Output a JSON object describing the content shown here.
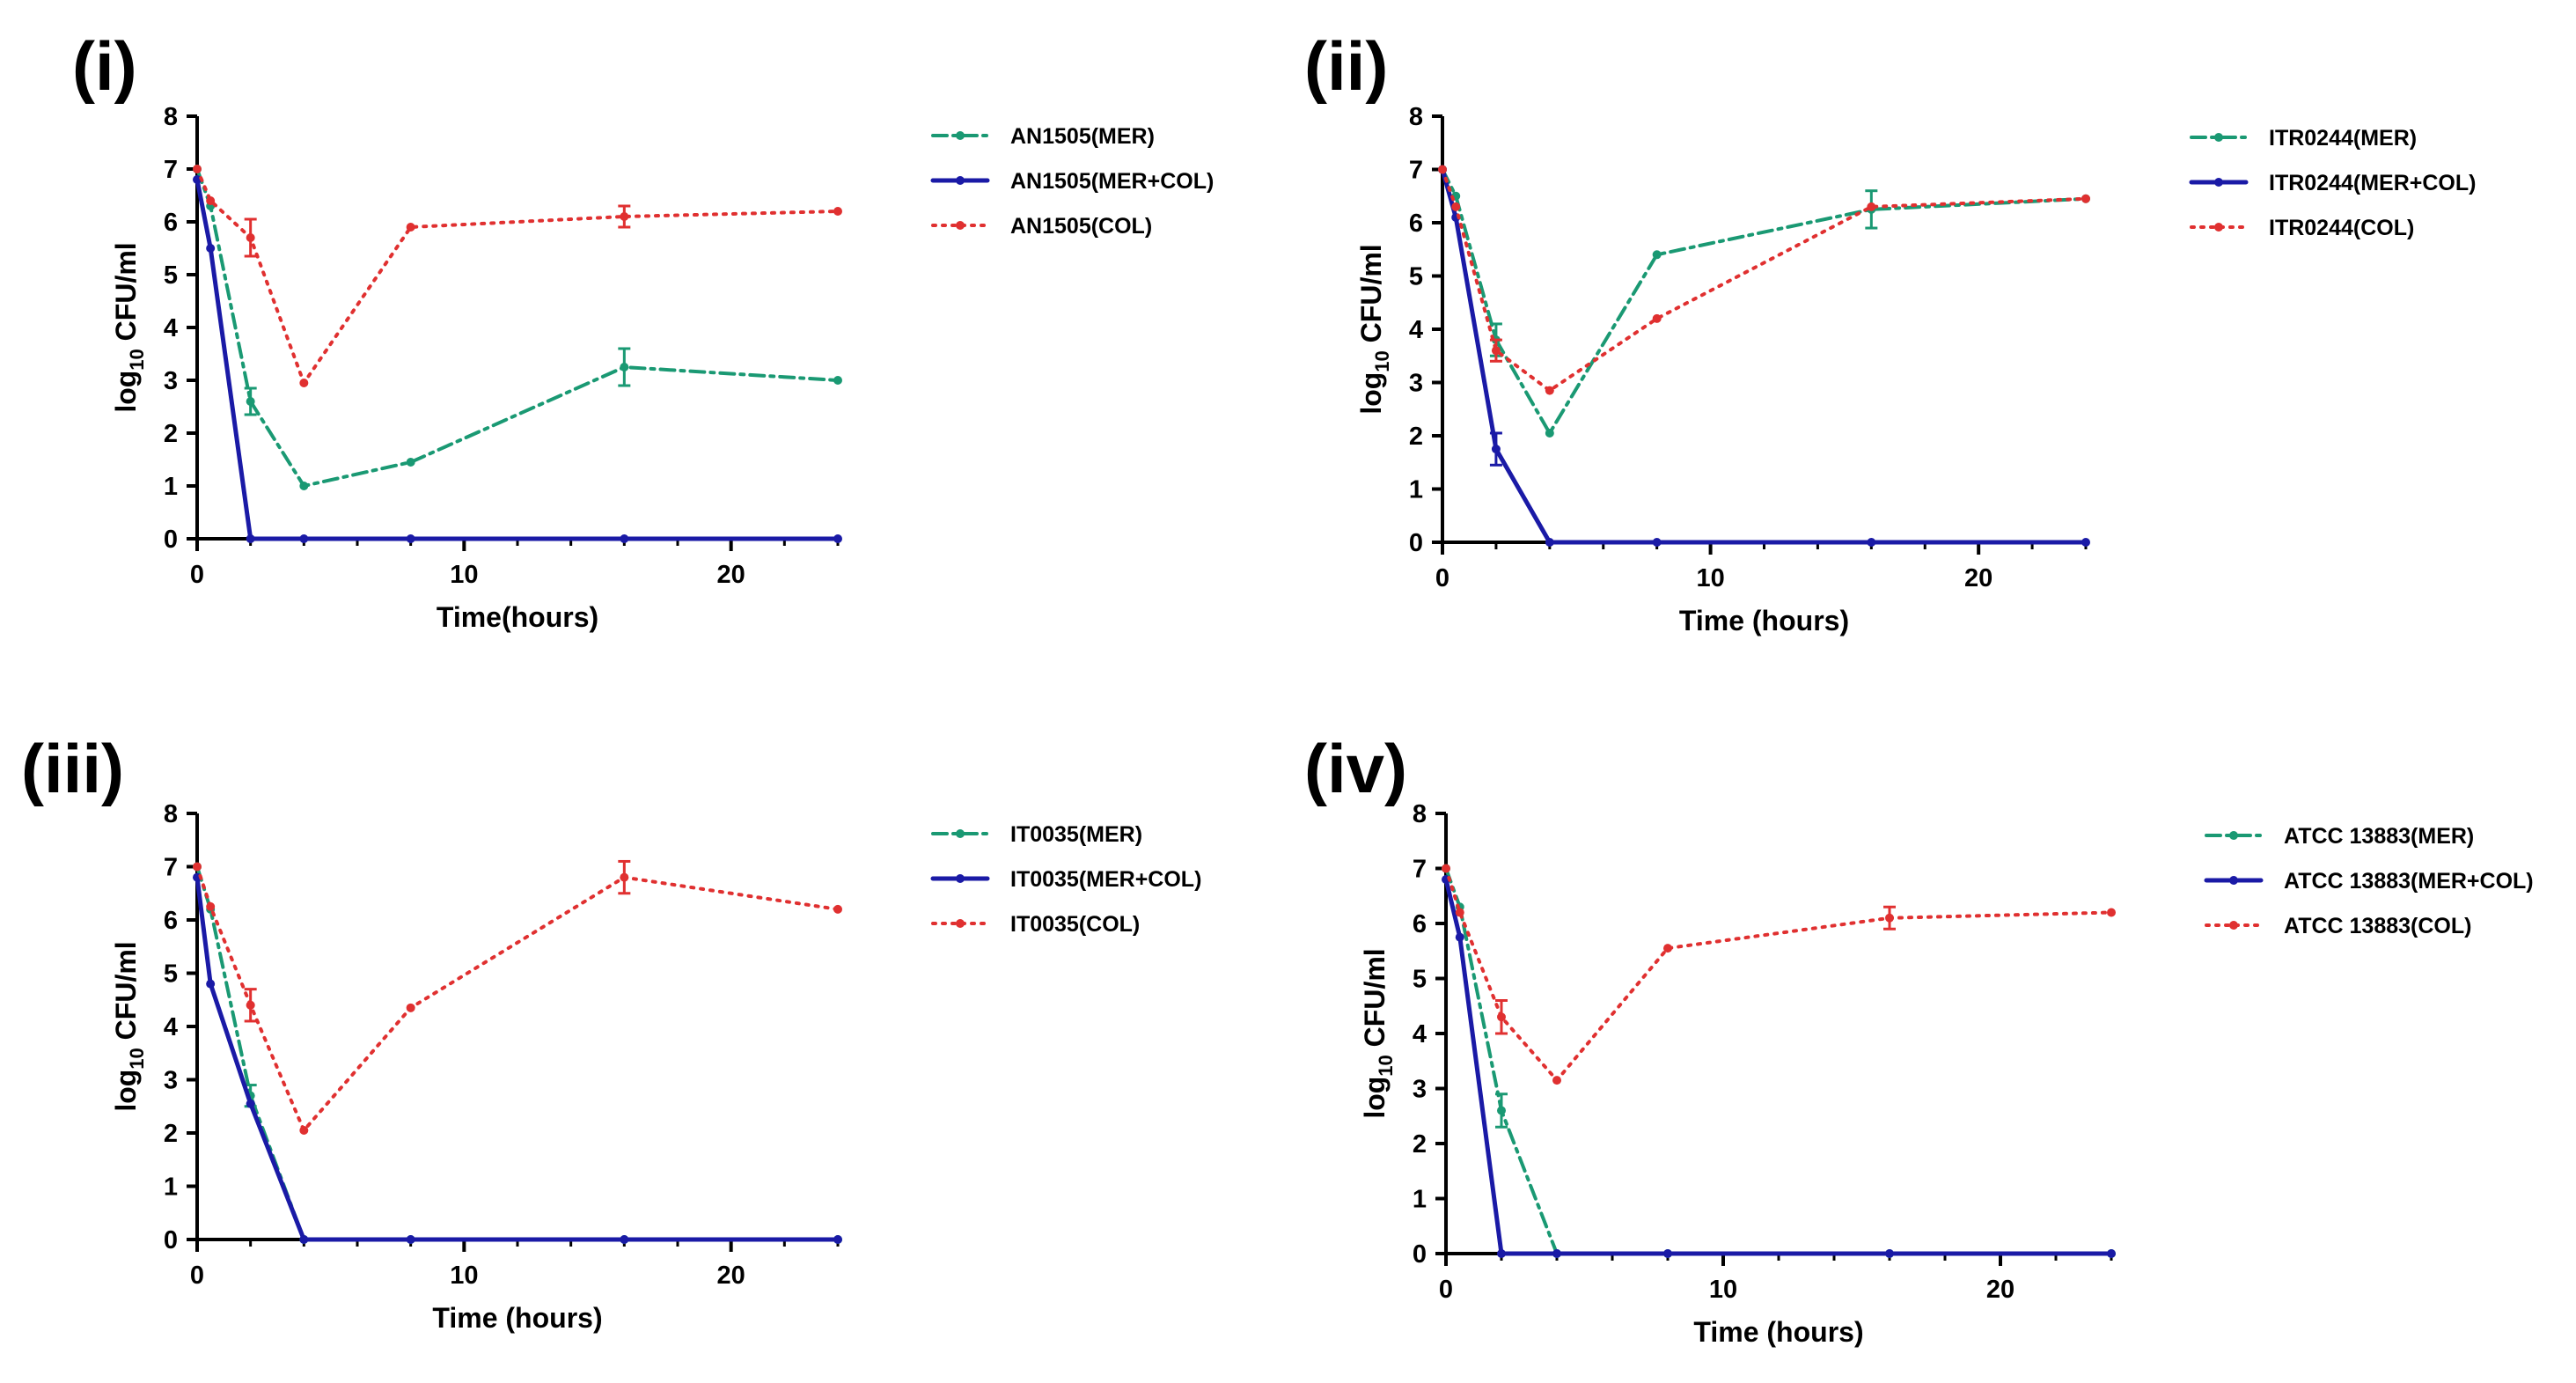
{
  "chart_data": [
    {
      "type": "line",
      "panel_label": "(i)",
      "xlabel": "Time(hours)",
      "ylabel_base": "log",
      "ylabel_sub": "10",
      "ylabel_unit": "CFU/ml",
      "xlim": [
        0,
        24
      ],
      "ylim": [
        0,
        8
      ],
      "xticks": [
        0,
        10,
        20
      ],
      "yticks": [
        0,
        1,
        2,
        3,
        4,
        5,
        6,
        7,
        8
      ],
      "legend_position": "right",
      "series": [
        {
          "name": "AN1505(MER)",
          "style": "dashdot",
          "color": "#1a9973",
          "x": [
            0,
            0.5,
            2,
            4,
            8,
            16,
            24
          ],
          "y": [
            7,
            6.3,
            2.6,
            1.0,
            1.45,
            3.25,
            3.0
          ],
          "err": [
            0,
            0,
            0.25,
            0,
            0,
            0.35,
            0
          ]
        },
        {
          "name": "AN1505(MER+COL)",
          "style": "solid",
          "color": "#1a1aa6",
          "x": [
            0,
            0.5,
            2,
            4,
            8,
            16,
            24
          ],
          "y": [
            6.8,
            5.5,
            0,
            0,
            0,
            0,
            0
          ],
          "err": [
            0,
            0,
            0,
            0,
            0,
            0,
            0
          ]
        },
        {
          "name": "AN1505(COL)",
          "style": "dotted",
          "color": "#e03030",
          "x": [
            0,
            0.5,
            2,
            4,
            8,
            16,
            24
          ],
          "y": [
            7,
            6.4,
            5.7,
            2.95,
            5.9,
            6.1,
            6.2
          ],
          "err": [
            0,
            0,
            0.35,
            0,
            0,
            0.2,
            0
          ]
        }
      ]
    },
    {
      "type": "line",
      "panel_label": "(ii)",
      "xlabel": "Time (hours)",
      "ylabel_base": "log",
      "ylabel_sub": "10",
      "ylabel_unit": "CFU/ml",
      "xlim": [
        0,
        24
      ],
      "ylim": [
        0,
        8
      ],
      "xticks": [
        0,
        10,
        20
      ],
      "yticks": [
        0,
        1,
        2,
        3,
        4,
        5,
        6,
        7,
        8
      ],
      "legend_position": "right",
      "series": [
        {
          "name": "ITR0244(MER)",
          "style": "dashdot",
          "color": "#1a9973",
          "x": [
            0,
            0.5,
            2,
            4,
            8,
            16,
            24
          ],
          "y": [
            7,
            6.5,
            3.8,
            2.05,
            5.4,
            6.25,
            6.45
          ],
          "err": [
            0,
            0,
            0.3,
            0,
            0,
            0.35,
            0
          ]
        },
        {
          "name": "ITR0244(MER+COL)",
          "style": "solid",
          "color": "#1a1aa6",
          "x": [
            0,
            0.5,
            2,
            4,
            8,
            16,
            24
          ],
          "y": [
            7,
            6.1,
            1.75,
            0,
            0,
            0,
            0
          ],
          "err": [
            0,
            0,
            0.3,
            0,
            0,
            0,
            0
          ]
        },
        {
          "name": "ITR0244(COL)",
          "style": "dotted",
          "color": "#e03030",
          "x": [
            0,
            0.5,
            2,
            4,
            8,
            16,
            24
          ],
          "y": [
            7,
            6.3,
            3.6,
            2.85,
            4.2,
            6.3,
            6.45
          ],
          "err": [
            0,
            0,
            0.2,
            0,
            0,
            0,
            0
          ]
        }
      ]
    },
    {
      "type": "line",
      "panel_label": "(iii)",
      "xlabel": "Time (hours)",
      "ylabel_base": "log",
      "ylabel_sub": "10",
      "ylabel_unit": "CFU/ml",
      "xlim": [
        0,
        24
      ],
      "ylim": [
        0,
        8
      ],
      "xticks": [
        0,
        10,
        20
      ],
      "yticks": [
        0,
        1,
        2,
        3,
        4,
        5,
        6,
        7,
        8
      ],
      "legend_position": "right",
      "series": [
        {
          "name": "IT0035(MER)",
          "style": "dashdot",
          "color": "#1a9973",
          "x": [
            0,
            0.5,
            2,
            4,
            8,
            16,
            24
          ],
          "y": [
            7,
            6.2,
            2.7,
            0,
            0,
            0,
            0
          ],
          "err": [
            0,
            0,
            0.2,
            0,
            0,
            0,
            0
          ]
        },
        {
          "name": "IT0035(MER+COL)",
          "style": "solid",
          "color": "#1a1aa6",
          "x": [
            0,
            0.5,
            2,
            4,
            8,
            16,
            24
          ],
          "y": [
            6.8,
            4.8,
            2.55,
            0,
            0,
            0,
            0
          ],
          "err": [
            0,
            0,
            0,
            0,
            0,
            0,
            0
          ]
        },
        {
          "name": "IT0035(COL)",
          "style": "dotted",
          "color": "#e03030",
          "x": [
            0,
            0.5,
            2,
            4,
            8,
            16,
            24
          ],
          "y": [
            7,
            6.25,
            4.4,
            2.05,
            4.35,
            6.8,
            6.2
          ],
          "err": [
            0,
            0,
            0.3,
            0,
            0,
            0.3,
            0
          ]
        }
      ]
    },
    {
      "type": "line",
      "panel_label": "(iv)",
      "xlabel": "Time (hours)",
      "ylabel_base": "log",
      "ylabel_sub": "10",
      "ylabel_unit": "CFU/ml",
      "xlim": [
        0,
        24
      ],
      "ylim": [
        0,
        8
      ],
      "xticks": [
        0,
        10,
        20
      ],
      "yticks": [
        0,
        1,
        2,
        3,
        4,
        5,
        6,
        7,
        8
      ],
      "legend_position": "right",
      "series": [
        {
          "name": "ATCC 13883(MER)",
          "style": "dashdot",
          "color": "#1a9973",
          "x": [
            0,
            0.5,
            2,
            4,
            8,
            16,
            24
          ],
          "y": [
            7,
            6.3,
            2.6,
            0,
            0,
            0,
            0
          ],
          "err": [
            0,
            0,
            0.3,
            0,
            0,
            0,
            0
          ]
        },
        {
          "name": "ATCC 13883(MER+COL)",
          "style": "solid",
          "color": "#1a1aa6",
          "x": [
            0,
            0.5,
            2,
            4,
            8,
            16,
            24
          ],
          "y": [
            6.8,
            5.75,
            0,
            0,
            0,
            0,
            0
          ],
          "err": [
            0,
            0,
            0,
            0,
            0,
            0,
            0
          ]
        },
        {
          "name": "ATCC 13883(COL)",
          "style": "dotted",
          "color": "#e03030",
          "x": [
            0,
            0.5,
            2,
            4,
            8,
            16,
            24
          ],
          "y": [
            7,
            6.2,
            4.3,
            3.15,
            5.55,
            6.1,
            6.2
          ],
          "err": [
            0,
            0,
            0.3,
            0,
            0,
            0.2,
            0
          ]
        }
      ]
    }
  ]
}
